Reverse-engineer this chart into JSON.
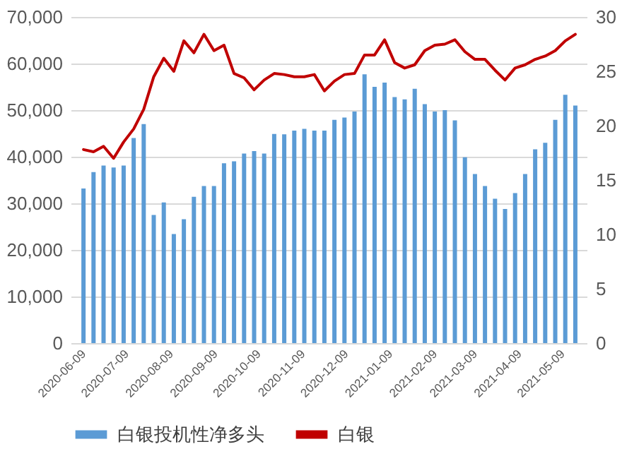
{
  "chart_data": {
    "type": "bar",
    "x": [
      "2020-06-09",
      "2020-06-16",
      "2020-06-23",
      "2020-06-30",
      "2020-07-07",
      "2020-07-14",
      "2020-07-21",
      "2020-07-28",
      "2020-08-04",
      "2020-08-11",
      "2020-08-18",
      "2020-08-25",
      "2020-09-01",
      "2020-09-08",
      "2020-09-15",
      "2020-09-22",
      "2020-09-29",
      "2020-10-06",
      "2020-10-13",
      "2020-10-20",
      "2020-10-27",
      "2020-11-03",
      "2020-11-10",
      "2020-11-17",
      "2020-11-24",
      "2020-12-01",
      "2020-12-08",
      "2020-12-15",
      "2020-12-22",
      "2020-12-29",
      "2021-01-05",
      "2021-01-12",
      "2021-01-19",
      "2021-01-26",
      "2021-02-02",
      "2021-02-09",
      "2021-02-16",
      "2021-02-23",
      "2021-03-02",
      "2021-03-09",
      "2021-03-16",
      "2021-03-23",
      "2021-03-30",
      "2021-04-06",
      "2021-04-13",
      "2021-04-20",
      "2021-04-27",
      "2021-05-04",
      "2021-05-11",
      "2021-05-18"
    ],
    "series": [
      {
        "name": "白银投机性净多头",
        "color": "#5b9bd5",
        "values": [
          33200,
          36700,
          38100,
          37700,
          38100,
          44000,
          47000,
          27500,
          30200,
          23400,
          26600,
          31400,
          33700,
          33700,
          38600,
          39000,
          40700,
          41200,
          40700,
          44900,
          44800,
          45600,
          46000,
          45600,
          45600,
          47900,
          48400,
          49700,
          57700,
          55000,
          55900,
          52800,
          52300,
          54600,
          51300,
          49700,
          50000,
          47800,
          39900,
          36300,
          33700,
          31000,
          28800,
          32200,
          36300,
          41600,
          43000,
          47900,
          53300,
          51000
        ]
      },
      {
        "type": "line",
        "name": "白银",
        "color": "#c00000",
        "axis": "y2",
        "values": [
          17.8,
          17.6,
          18.1,
          17.0,
          18.5,
          19.7,
          21.5,
          24.5,
          26.2,
          25.0,
          27.8,
          26.7,
          28.4,
          26.9,
          27.4,
          24.8,
          24.4,
          23.3,
          24.2,
          24.8,
          24.7,
          24.5,
          24.5,
          24.7,
          23.2,
          24.1,
          24.7,
          24.8,
          26.5,
          26.5,
          27.9,
          25.8,
          25.3,
          25.6,
          26.9,
          27.4,
          27.5,
          27.9,
          26.8,
          26.1,
          26.1,
          25.1,
          24.2,
          25.3,
          25.6,
          26.1,
          26.4,
          26.9,
          27.8,
          28.4
        ]
      }
    ],
    "xlim": [
      "2020-06-05",
      "2021-05-21"
    ],
    "xticks": [
      "2020-06-09",
      "2020-07-09",
      "2020-08-09",
      "2020-09-09",
      "2020-10-09",
      "2020-11-09",
      "2020-12-09",
      "2021-01-09",
      "2021-02-09",
      "2021-03-09",
      "2021-04-09",
      "2021-05-09"
    ],
    "ylim": [
      0,
      70000
    ],
    "yticks": [
      0,
      {
        "value": 10000,
        "label": "10,000"
      },
      {
        "value": 20000,
        "label": "20,000"
      },
      {
        "value": 30000,
        "label": "30,000"
      },
      {
        "value": 40000,
        "label": "40,000"
      },
      {
        "value": 50000,
        "label": "50,000"
      },
      {
        "value": 60000,
        "label": "60,000"
      },
      {
        "value": 70000,
        "label": "70,000"
      }
    ],
    "y2lim": [
      0,
      30
    ],
    "y2ticks": [
      0,
      5,
      10,
      15,
      20,
      25,
      30
    ],
    "grid": "y",
    "legend": "bottom"
  }
}
